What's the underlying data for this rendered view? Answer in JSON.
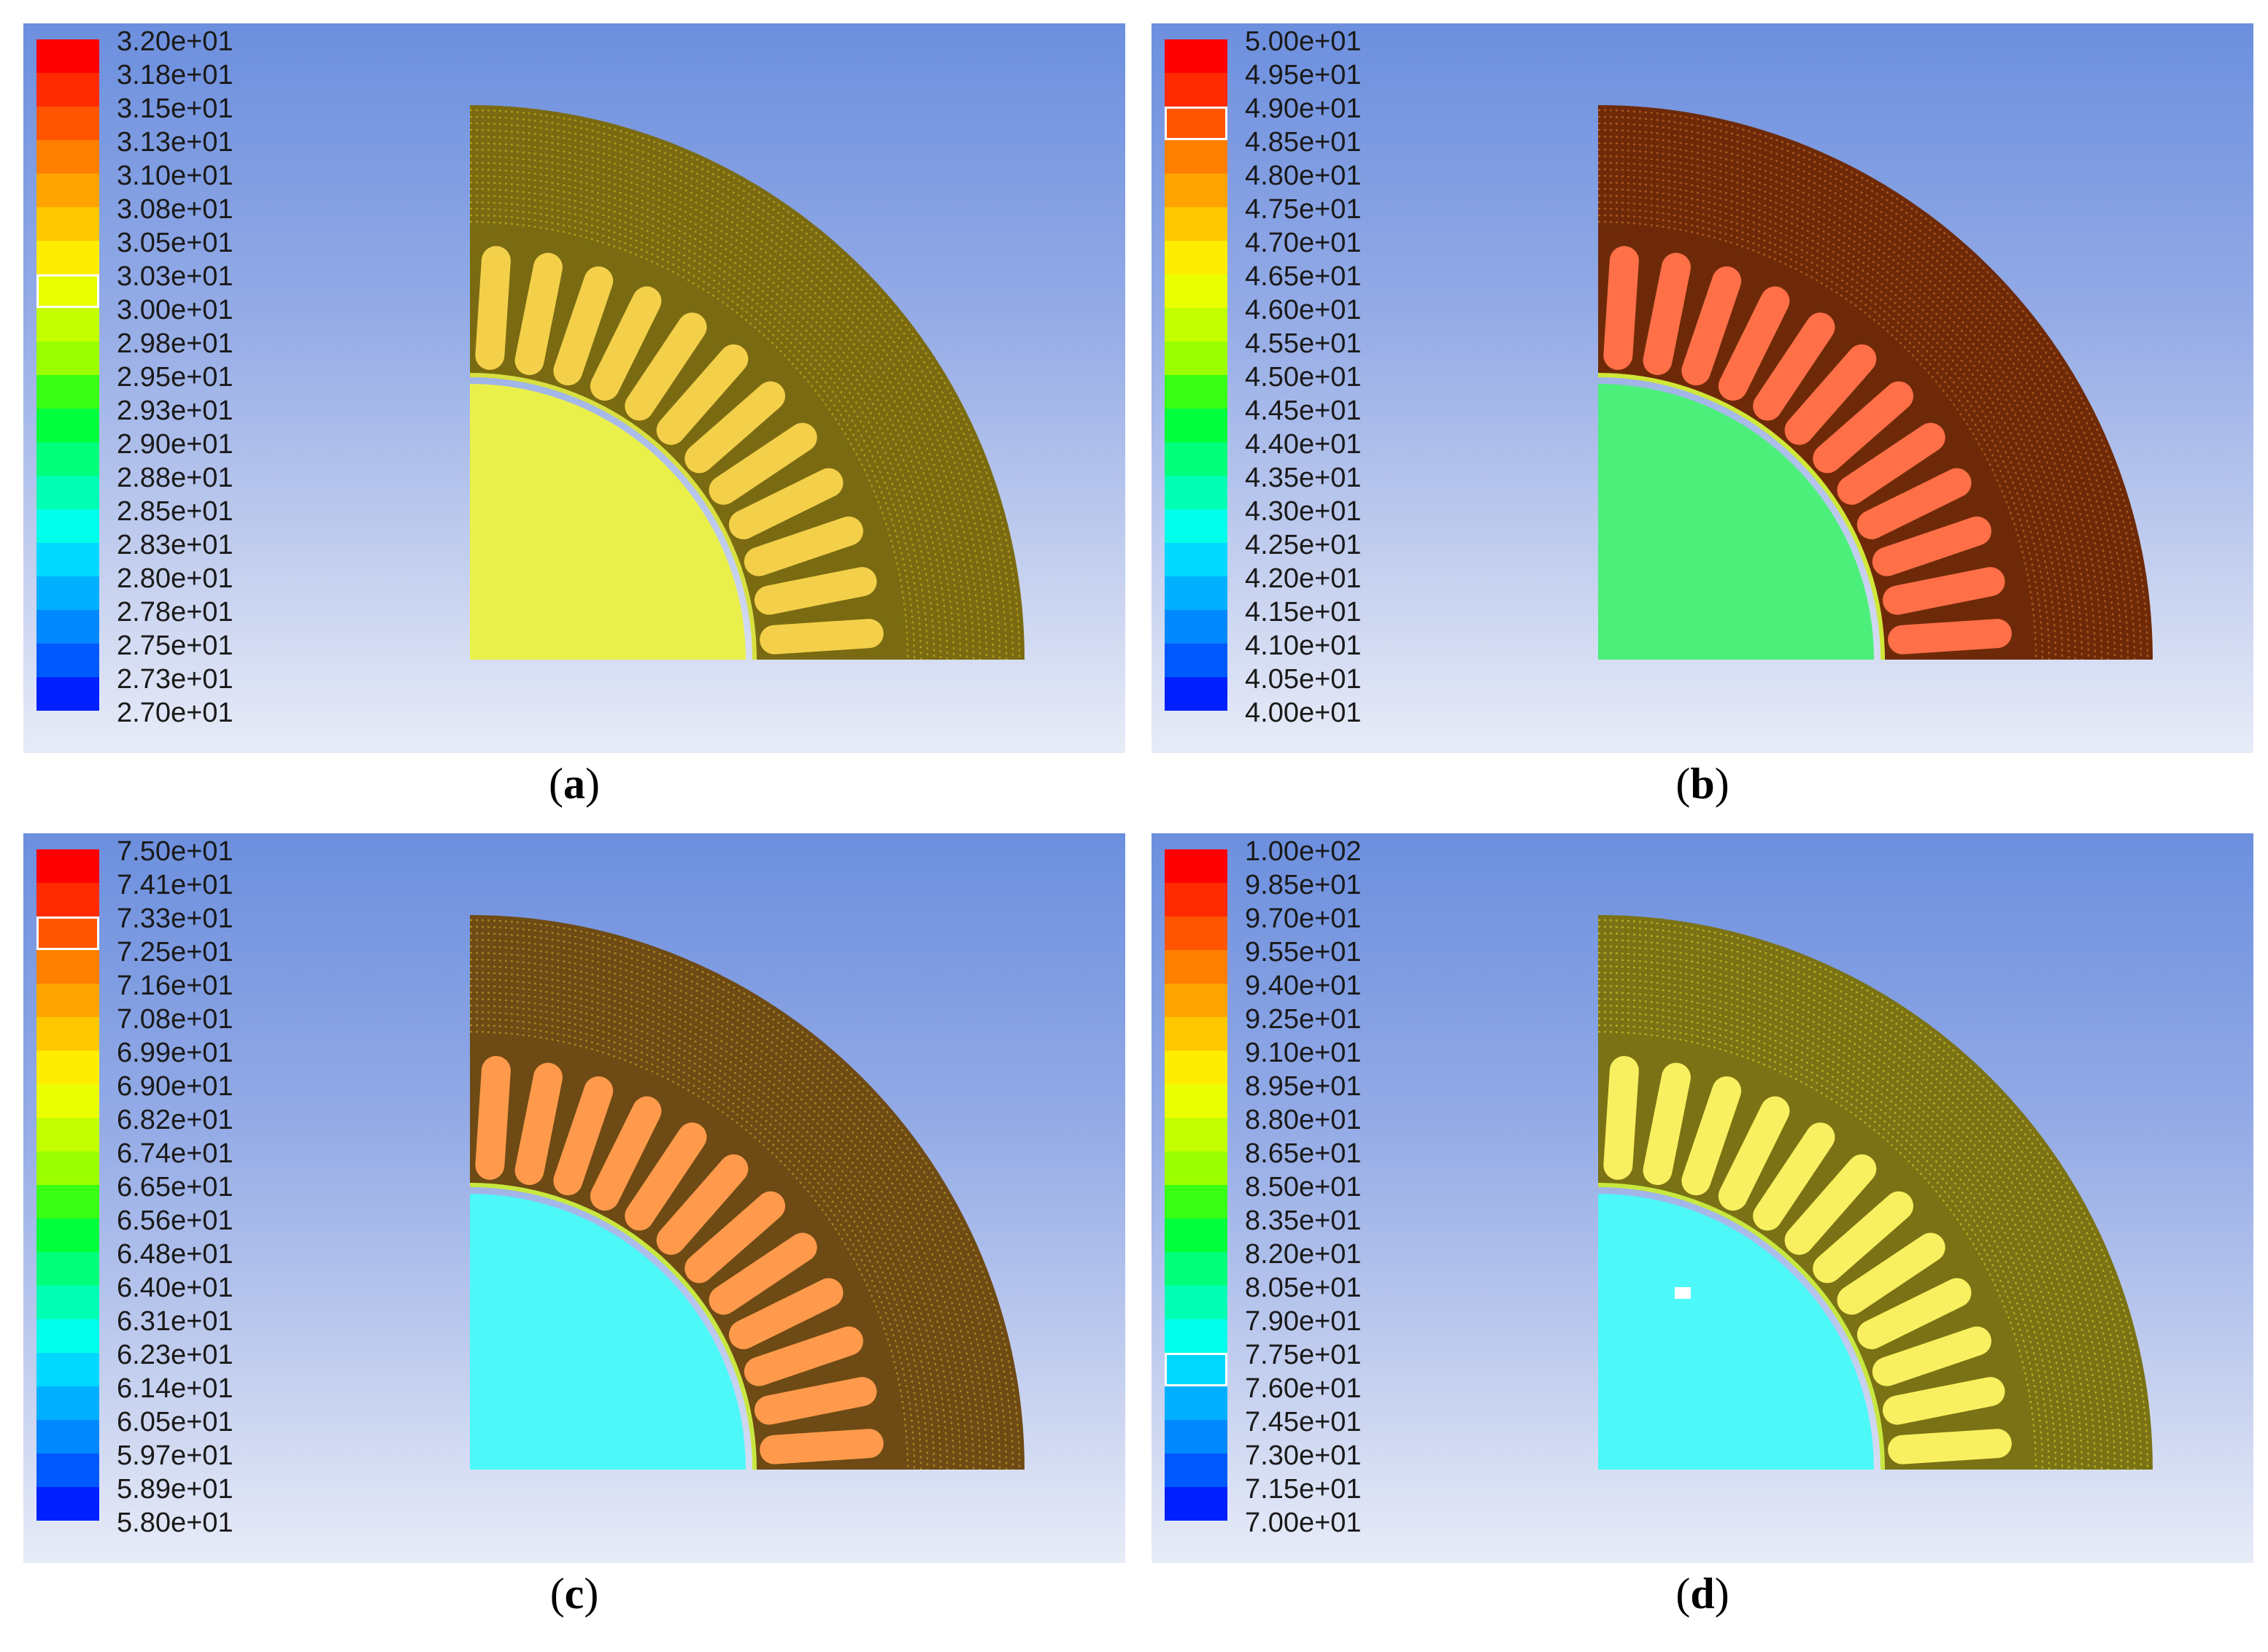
{
  "panels": [
    {
      "id": "a",
      "caption_letter": "a",
      "labels": [
        "3.20e+01",
        "3.18e+01",
        "3.15e+01",
        "3.13e+01",
        "3.10e+01",
        "3.08e+01",
        "3.05e+01",
        "3.03e+01",
        "3.00e+01",
        "2.98e+01",
        "2.95e+01",
        "2.93e+01",
        "2.90e+01",
        "2.88e+01",
        "2.85e+01",
        "2.83e+01",
        "2.80e+01",
        "2.78e+01",
        "2.75e+01",
        "2.73e+01",
        "2.70e+01"
      ],
      "highlight_swatch": 7,
      "colors": {
        "stator": "#7a6b12",
        "stator_speckle": "#d8c020",
        "slots": "#f4d04a",
        "rotor": "#eaf04a",
        "airgap": "#d8e040"
      }
    },
    {
      "id": "b",
      "caption_letter": "b",
      "labels": [
        "5.00e+01",
        "4.95e+01",
        "4.90e+01",
        "4.85e+01",
        "4.80e+01",
        "4.75e+01",
        "4.70e+01",
        "4.65e+01",
        "4.60e+01",
        "4.55e+01",
        "4.50e+01",
        "4.45e+01",
        "4.40e+01",
        "4.35e+01",
        "4.30e+01",
        "4.25e+01",
        "4.20e+01",
        "4.15e+01",
        "4.10e+01",
        "4.05e+01",
        "4.00e+01"
      ],
      "highlight_swatch": 2,
      "colors": {
        "stator": "#6e2a08",
        "stator_speckle": "#e07a30",
        "slots": "#ff7048",
        "rotor": "#4cef7a",
        "airgap": "#d0e838"
      }
    },
    {
      "id": "c",
      "caption_letter": "c",
      "labels": [
        "7.50e+01",
        "7.41e+01",
        "7.33e+01",
        "7.25e+01",
        "7.16e+01",
        "7.08e+01",
        "6.99e+01",
        "6.90e+01",
        "6.82e+01",
        "6.74e+01",
        "6.65e+01",
        "6.56e+01",
        "6.48e+01",
        "6.40e+01",
        "6.31e+01",
        "6.23e+01",
        "6.14e+01",
        "6.05e+01",
        "5.97e+01",
        "5.89e+01",
        "5.80e+01"
      ],
      "highlight_swatch": 2,
      "colors": {
        "stator": "#6e4a14",
        "stator_speckle": "#d6b030",
        "slots": "#ff9a4c",
        "rotor": "#4cf8f8",
        "airgap": "#c8e840"
      }
    },
    {
      "id": "d",
      "caption_letter": "d",
      "labels": [
        "1.00e+02",
        "9.85e+01",
        "9.70e+01",
        "9.55e+01",
        "9.40e+01",
        "9.25e+01",
        "9.10e+01",
        "8.95e+01",
        "8.80e+01",
        "8.65e+01",
        "8.50e+01",
        "8.35e+01",
        "8.20e+01",
        "8.05e+01",
        "7.90e+01",
        "7.75e+01",
        "7.60e+01",
        "7.45e+01",
        "7.30e+01",
        "7.15e+01",
        "7.00e+01"
      ],
      "highlight_swatch": 15,
      "colors": {
        "stator": "#7a7214",
        "stator_speckle": "#e8d830",
        "slots": "#f8f060",
        "rotor": "#4cf8f8",
        "airgap": "#c8e840"
      }
    }
  ],
  "colormap": [
    "#ff0000",
    "#ff2a00",
    "#ff5500",
    "#ff7f00",
    "#ffa400",
    "#ffc800",
    "#ffed00",
    "#eaff00",
    "#c3ff00",
    "#9cff00",
    "#70ff00",
    "#38ff14",
    "#00ff3c",
    "#00ff7a",
    "#00ffb4",
    "#00ffea",
    "#00d8ff",
    "#00b0ff",
    "#0088ff",
    "#0058ff",
    "#0020ff"
  ]
}
